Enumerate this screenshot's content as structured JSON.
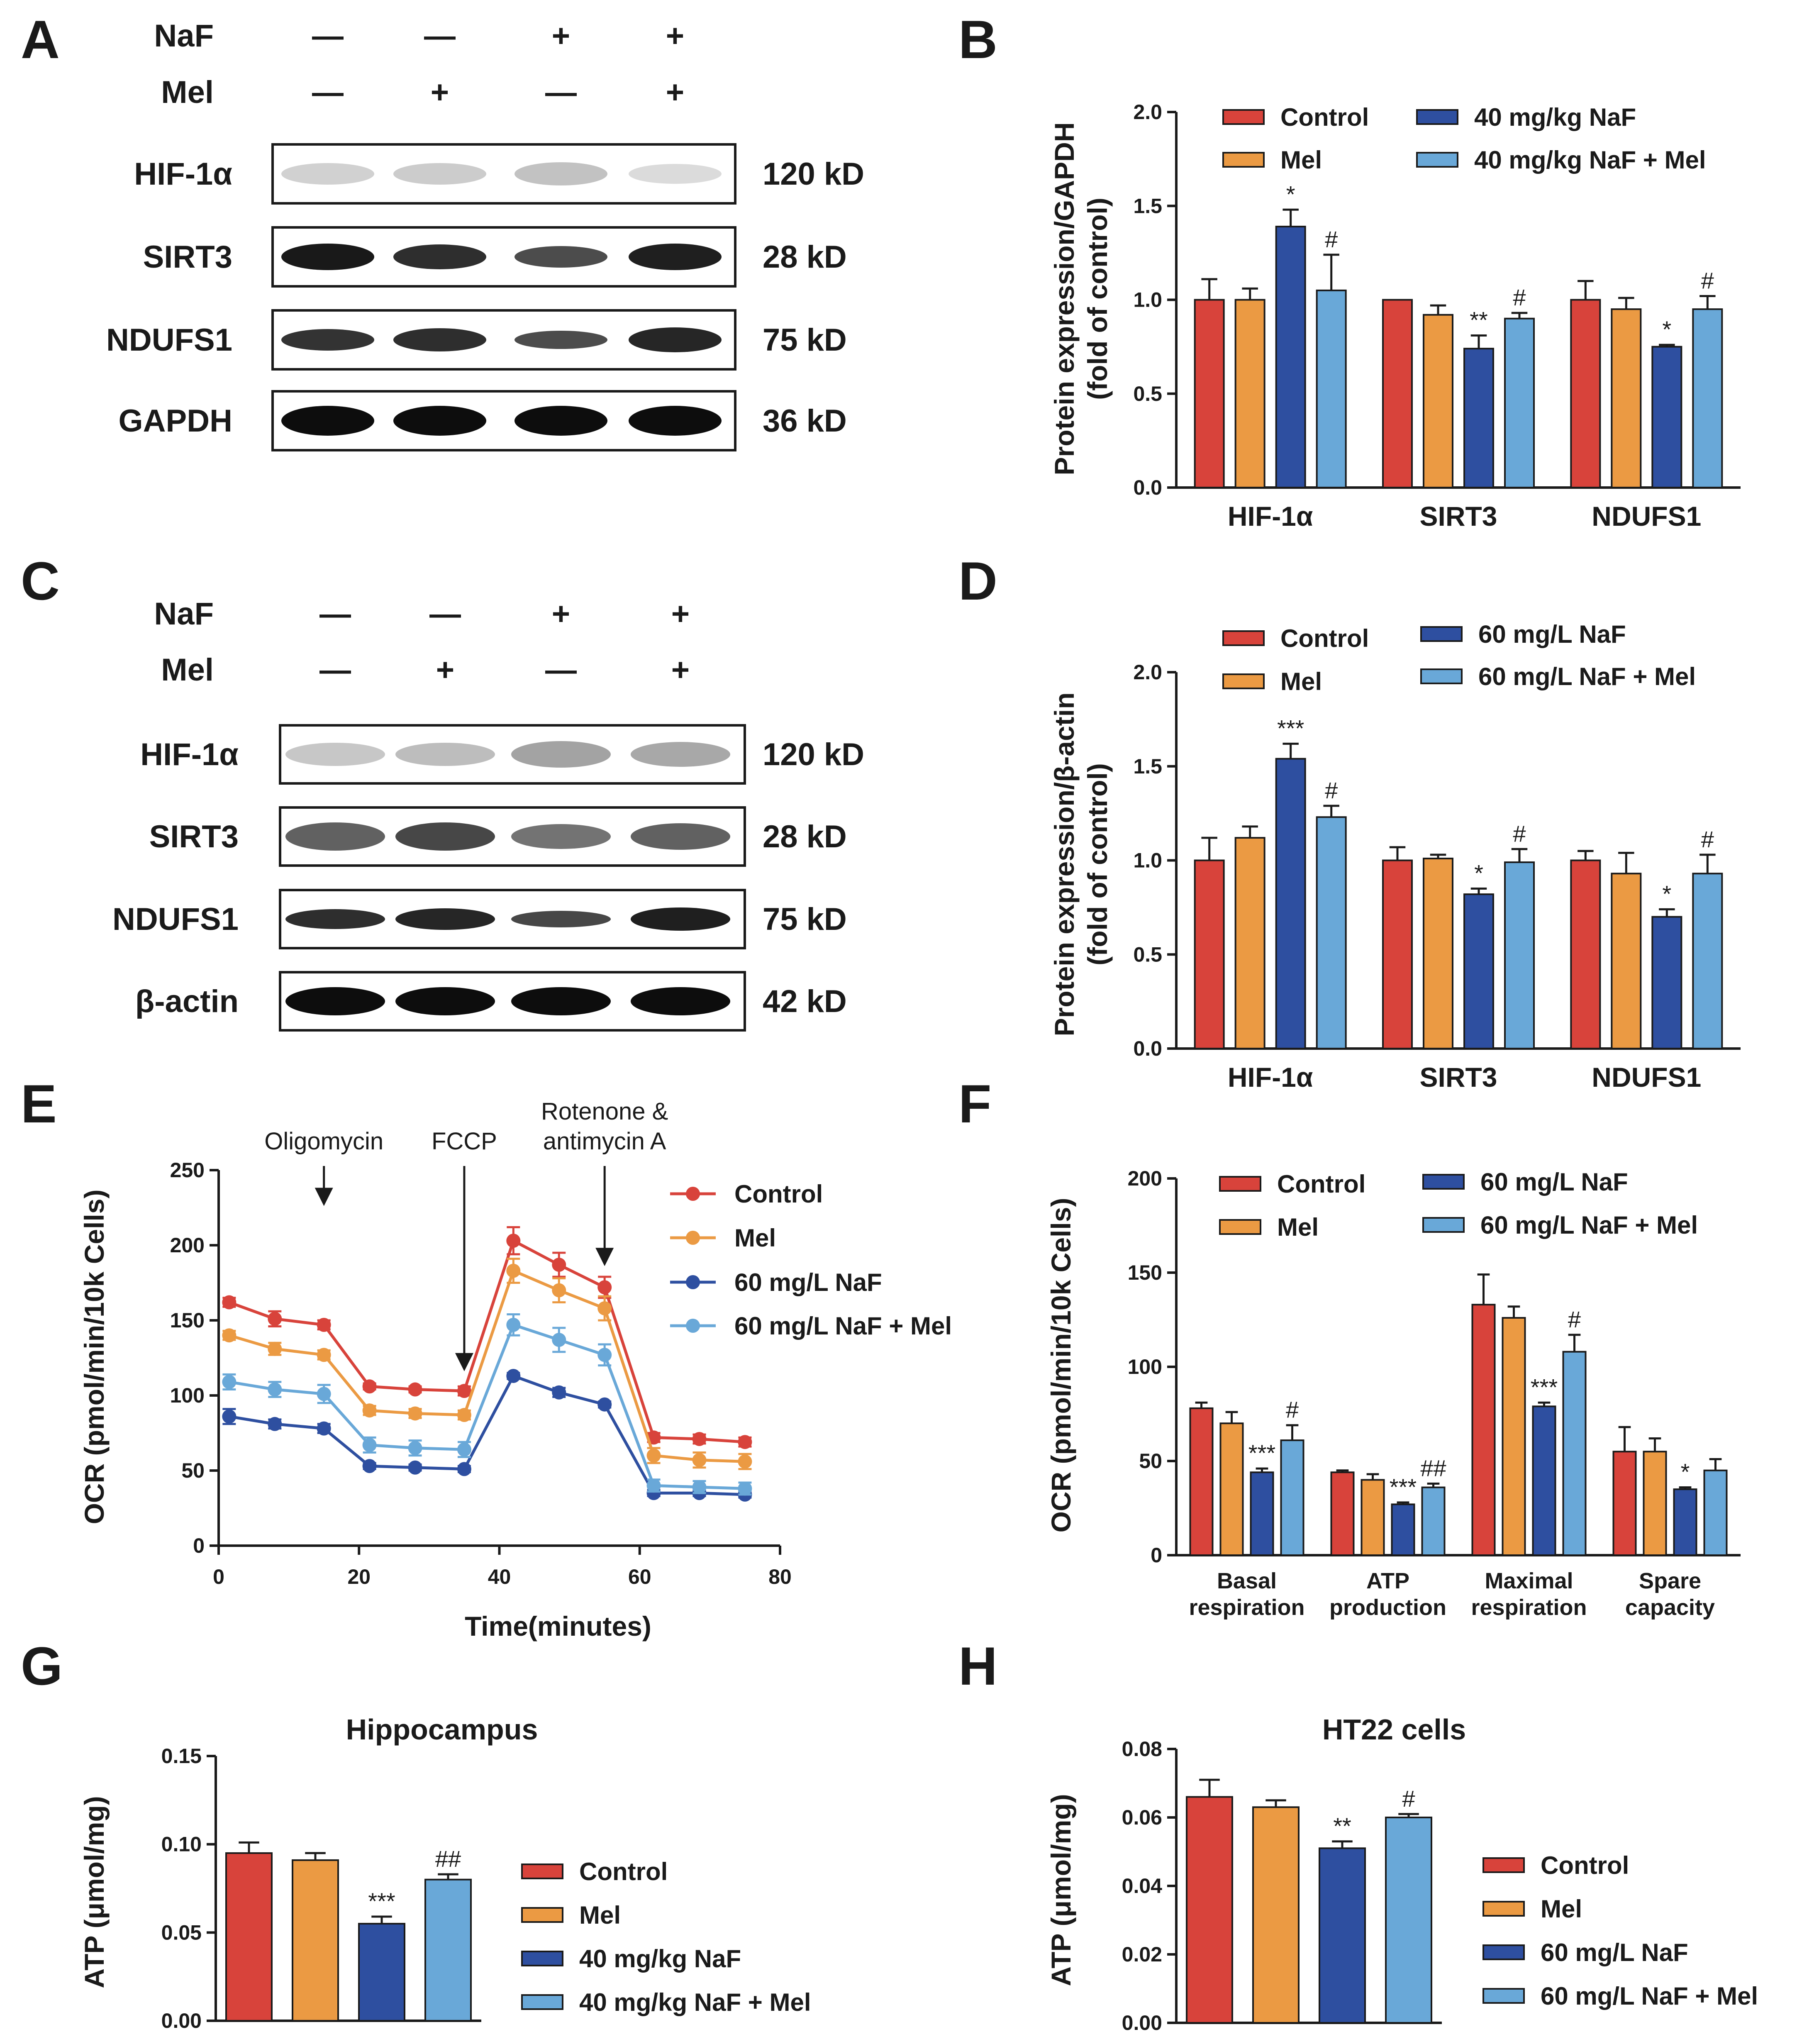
{
  "colors": {
    "control": "#d8433b",
    "mel": "#eb9a43",
    "naf": "#2e4fa0",
    "naf_mel": "#69a8d8",
    "axis": "#1a1a1a"
  },
  "panel_letters": [
    "A",
    "B",
    "C",
    "D",
    "E",
    "F",
    "G",
    "H"
  ],
  "blot_A": {
    "treatments": [
      {
        "label": "NaF",
        "signs": [
          "—",
          "—",
          "+",
          "+"
        ]
      },
      {
        "label": "Mel",
        "signs": [
          "—",
          "+",
          "—",
          "+"
        ]
      }
    ],
    "rows": [
      {
        "protein": "HIF-1α",
        "size": "120 kD"
      },
      {
        "protein": "SIRT3",
        "size": "28 kD"
      },
      {
        "protein": "NDUFS1",
        "size": "75 kD"
      },
      {
        "protein": "GAPDH",
        "size": "36 kD"
      }
    ]
  },
  "blot_C": {
    "treatments": [
      {
        "label": "NaF",
        "signs": [
          "—",
          "—",
          "+",
          "+"
        ]
      },
      {
        "label": "Mel",
        "signs": [
          "—",
          "+",
          "—",
          "+"
        ]
      }
    ],
    "rows": [
      {
        "protein": "HIF-1α",
        "size": "120 kD"
      },
      {
        "protein": "SIRT3",
        "size": "28 kD"
      },
      {
        "protein": "NDUFS1",
        "size": "75 kD"
      },
      {
        "protein": "β-actin",
        "size": "42 kD"
      }
    ]
  },
  "chart_data": [
    {
      "panel": "B",
      "type": "bar",
      "ylabel": "Protein expression/GAPDH",
      "ylabel2": "(fold of control)",
      "ylim": [
        0,
        2.0
      ],
      "yticks": [
        "0.0",
        "0.5",
        "1.0",
        "1.5",
        "2.0"
      ],
      "categories": [
        "HIF-1α",
        "SIRT3",
        "NDUFS1"
      ],
      "legend": [
        "Control",
        "Mel",
        "40 mg/kg NaF",
        "40 mg/kg NaF + Mel"
      ],
      "series": [
        {
          "name": "Control",
          "values": [
            1.0,
            1.0,
            1.0
          ],
          "errors": [
            0.11,
            0.0,
            0.1
          ],
          "marks": [
            "",
            "",
            ""
          ]
        },
        {
          "name": "Mel",
          "values": [
            1.0,
            0.92,
            0.95
          ],
          "errors": [
            0.06,
            0.05,
            0.06
          ],
          "marks": [
            "",
            "",
            ""
          ]
        },
        {
          "name": "40 mg/kg NaF",
          "values": [
            1.39,
            0.74,
            0.75
          ],
          "errors": [
            0.09,
            0.07,
            0.01
          ],
          "marks": [
            "*",
            "**",
            "*"
          ]
        },
        {
          "name": "40 mg/kg NaF + Mel",
          "values": [
            1.05,
            0.9,
            0.95
          ],
          "errors": [
            0.19,
            0.03,
            0.07
          ],
          "marks": [
            "#",
            "#",
            "#"
          ]
        }
      ]
    },
    {
      "panel": "D",
      "type": "bar",
      "ylabel": "Protein expression/β-actin",
      "ylabel2": "(fold of control)",
      "ylim": [
        0,
        2.0
      ],
      "yticks": [
        "0.0",
        "0.5",
        "1.0",
        "1.5",
        "2.0"
      ],
      "categories": [
        "HIF-1α",
        "SIRT3",
        "NDUFS1"
      ],
      "legend": [
        "Control",
        "Mel",
        "60 mg/L NaF",
        "60 mg/L NaF + Mel"
      ],
      "series": [
        {
          "name": "Control",
          "values": [
            1.0,
            1.0,
            1.0
          ],
          "errors": [
            0.12,
            0.07,
            0.05
          ],
          "marks": [
            "",
            "",
            ""
          ]
        },
        {
          "name": "Mel",
          "values": [
            1.12,
            1.01,
            0.93
          ],
          "errors": [
            0.06,
            0.02,
            0.11
          ],
          "marks": [
            "",
            "",
            ""
          ]
        },
        {
          "name": "60 mg/L NaF",
          "values": [
            1.54,
            0.82,
            0.7
          ],
          "errors": [
            0.08,
            0.03,
            0.04
          ],
          "marks": [
            "***",
            "*",
            "*"
          ]
        },
        {
          "name": "60 mg/L NaF + Mel",
          "values": [
            1.23,
            0.99,
            0.93
          ],
          "errors": [
            0.06,
            0.07,
            0.1
          ],
          "marks": [
            "#",
            "#",
            "#"
          ]
        }
      ]
    },
    {
      "panel": "E",
      "type": "line",
      "xlabel": "Time(minutes)",
      "ylabel": "OCR (pmol/min/10k Cells)",
      "xlim": [
        0,
        80
      ],
      "ylim": [
        0,
        250
      ],
      "xticks": [
        "0",
        "20",
        "40",
        "60",
        "80"
      ],
      "yticks": [
        "0",
        "50",
        "100",
        "150",
        "200",
        "250"
      ],
      "x": [
        1.5,
        8,
        15,
        21.5,
        28,
        35,
        42,
        48.5,
        55,
        62,
        68.5,
        75
      ],
      "annotations": [
        {
          "lines": [
            "Oligomycin"
          ],
          "x": 15
        },
        {
          "lines": [
            "FCCP"
          ],
          "x": 35
        },
        {
          "lines": [
            "Rotenone &",
            "antimycin A"
          ],
          "x": 55
        }
      ],
      "legend": [
        "Control",
        "Mel",
        "60 mg/L NaF",
        "60 mg/L NaF + Mel"
      ],
      "series": [
        {
          "name": "Control",
          "values": [
            162,
            151,
            147,
            106,
            104,
            103,
            203,
            187,
            172,
            72,
            71,
            69
          ],
          "errors": [
            3,
            5,
            3,
            2,
            2,
            3,
            9,
            8,
            7,
            3,
            3,
            3
          ]
        },
        {
          "name": "Mel",
          "values": [
            140,
            131,
            127,
            90,
            88,
            87,
            183,
            170,
            158,
            60,
            57,
            56
          ],
          "errors": [
            3,
            4,
            3,
            3,
            3,
            3,
            8,
            8,
            8,
            5,
            5,
            5
          ]
        },
        {
          "name": "60 mg/L NaF",
          "values": [
            86,
            81,
            78,
            53,
            52,
            51,
            113,
            102,
            94,
            35,
            35,
            34
          ],
          "errors": [
            5,
            3,
            3,
            2,
            2,
            2,
            2,
            3,
            2,
            2,
            2,
            2
          ]
        },
        {
          "name": "60 mg/L NaF + Mel",
          "values": [
            109,
            104,
            101,
            67,
            65,
            64,
            147,
            137,
            127,
            40,
            39,
            38
          ],
          "errors": [
            5,
            5,
            6,
            5,
            5,
            5,
            7,
            8,
            7,
            4,
            4,
            4
          ]
        }
      ]
    },
    {
      "panel": "F",
      "type": "bar",
      "ylabel": "OCR (pmol/min/10k Cells)",
      "ylim": [
        0,
        200
      ],
      "yticks": [
        "0",
        "50",
        "100",
        "150",
        "200"
      ],
      "categories": [
        [
          "Basal",
          "respiration"
        ],
        [
          "ATP",
          "production"
        ],
        [
          "Maximal",
          "respiration"
        ],
        [
          "Spare",
          "capacity"
        ]
      ],
      "legend": [
        "Control",
        "Mel",
        "60 mg/L NaF",
        "60 mg/L NaF + Mel"
      ],
      "series": [
        {
          "name": "Control",
          "values": [
            78,
            44,
            133,
            55
          ],
          "errors": [
            3,
            1,
            16,
            13
          ],
          "marks": [
            "",
            "",
            "",
            ""
          ]
        },
        {
          "name": "Mel",
          "values": [
            70,
            40,
            126,
            55
          ],
          "errors": [
            6,
            3,
            6,
            7
          ],
          "marks": [
            "",
            "",
            "",
            ""
          ]
        },
        {
          "name": "60 mg/L NaF",
          "values": [
            44,
            27,
            79,
            35
          ],
          "errors": [
            2,
            1,
            2,
            1
          ],
          "marks": [
            "***",
            "***",
            "***",
            "*"
          ]
        },
        {
          "name": "60 mg/L NaF + Mel",
          "values": [
            61,
            36,
            108,
            45
          ],
          "errors": [
            8,
            2,
            9,
            6
          ],
          "marks": [
            "#",
            "##",
            "#",
            ""
          ]
        }
      ]
    },
    {
      "panel": "G",
      "type": "bar",
      "title": "Hippocampus",
      "ylabel": "ATP (μmol/mg)",
      "ylim": [
        0,
        0.15
      ],
      "yticks": [
        "0.00",
        "0.05",
        "0.10",
        "0.15"
      ],
      "categories": [
        "Control",
        "Mel",
        "40 mg/kg NaF",
        "40 mg/kg NaF + Mel"
      ],
      "legend": [
        "Control",
        "Mel",
        "40 mg/kg NaF",
        "40 mg/kg NaF + Mel"
      ],
      "values": [
        0.095,
        0.091,
        0.055,
        0.08
      ],
      "errors": [
        0.006,
        0.004,
        0.004,
        0.003
      ],
      "marks": [
        "",
        "",
        "***",
        "##"
      ]
    },
    {
      "panel": "H",
      "type": "bar",
      "title": "HT22 cells",
      "ylabel": "ATP (μmol/mg)",
      "ylim": [
        0,
        0.08
      ],
      "yticks": [
        "0.00",
        "0.02",
        "0.04",
        "0.06",
        "0.08"
      ],
      "categories": [
        "Control",
        "Mel",
        "60 mg/L NaF",
        "60 mg/L NaF + Mel"
      ],
      "legend": [
        "Control",
        "Mel",
        "60 mg/L NaF",
        "60 mg/L NaF + Mel"
      ],
      "values": [
        0.066,
        0.063,
        0.051,
        0.06
      ],
      "errors": [
        0.005,
        0.002,
        0.002,
        0.001
      ],
      "marks": [
        "",
        "",
        "**",
        "#"
      ]
    }
  ]
}
